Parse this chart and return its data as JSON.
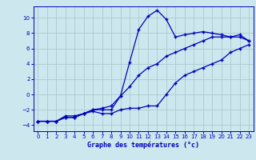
{
  "xlabel": "Graphe des températures (°c)",
  "background_color": "#cce8ee",
  "grid_color": "#aacccc",
  "line_color": "#0000bb",
  "xlim": [
    -0.5,
    23.5
  ],
  "ylim": [
    -4.8,
    11.5
  ],
  "xticks": [
    0,
    1,
    2,
    3,
    4,
    5,
    6,
    7,
    8,
    9,
    10,
    11,
    12,
    13,
    14,
    15,
    16,
    17,
    18,
    19,
    20,
    21,
    22,
    23
  ],
  "yticks": [
    -4,
    -2,
    0,
    2,
    4,
    6,
    8,
    10
  ],
  "curve1_x": [
    0,
    1,
    2,
    3,
    4,
    5,
    6,
    7,
    8,
    9,
    10,
    11,
    12,
    13,
    14,
    15,
    16,
    17,
    18,
    19,
    20,
    21,
    22,
    23
  ],
  "curve1_y": [
    -3.5,
    -3.5,
    -3.5,
    -3,
    -3,
    -2.5,
    -2,
    -2,
    -2,
    -0.2,
    4.2,
    8.5,
    10.2,
    11,
    9.8,
    7.5,
    7.8,
    8,
    8.2,
    8,
    7.8,
    7.5,
    7.8,
    7
  ],
  "curve2_x": [
    0,
    1,
    2,
    3,
    4,
    5,
    6,
    7,
    8,
    9,
    10,
    11,
    12,
    13,
    14,
    15,
    16,
    17,
    18,
    19,
    20,
    21,
    22,
    23
  ],
  "curve2_y": [
    -3.5,
    -3.5,
    -3.5,
    -3,
    -3,
    -2.5,
    -2.2,
    -2.5,
    -2.5,
    -2,
    -1.8,
    -1.8,
    -1.5,
    -1.5,
    0,
    1.5,
    2.5,
    3,
    3.5,
    4,
    4.5,
    5.5,
    6,
    6.5
  ],
  "curve3_x": [
    0,
    1,
    2,
    3,
    4,
    5,
    6,
    7,
    8,
    9,
    10,
    11,
    12,
    13,
    14,
    15,
    16,
    17,
    18,
    19,
    20,
    21,
    22,
    23
  ],
  "curve3_y": [
    -3.5,
    -3.5,
    -3.5,
    -2.8,
    -2.8,
    -2.5,
    -2,
    -1.8,
    -1.5,
    -0.2,
    1,
    2.5,
    3.5,
    4,
    5,
    5.5,
    6,
    6.5,
    7,
    7.5,
    7.5,
    7.5,
    7.5,
    7
  ],
  "tick_fontsize": 5.0,
  "xlabel_fontsize": 6.0,
  "marker_size": 3.5,
  "line_width": 0.9
}
